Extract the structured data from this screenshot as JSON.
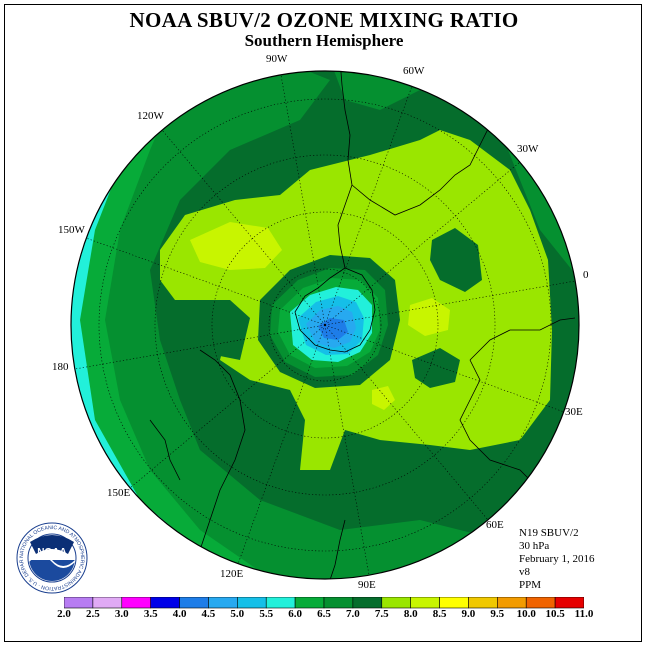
{
  "title": "NOAA SBUV/2 OZONE MIXING RATIO",
  "subtitle": "Southern Hemisphere",
  "info": {
    "instrument": "N19 SBUV/2",
    "level": "30 hPa",
    "date": "February 1, 2016",
    "version": "v8",
    "units": "PPM"
  },
  "longitude_labels": [
    "90W",
    "60W",
    "30W",
    "0",
    "30E",
    "60E",
    "90E",
    "120E",
    "150E",
    "180",
    "150W",
    "120W"
  ],
  "colorbar": {
    "ticks": [
      "2.0",
      "2.5",
      "3.0",
      "3.5",
      "4.0",
      "4.5",
      "5.0",
      "5.5",
      "6.0",
      "6.5",
      "7.0",
      "7.5",
      "8.0",
      "8.5",
      "9.0",
      "9.5",
      "10.0",
      "10.5",
      "11.0"
    ],
    "colors": [
      "#b77cf2",
      "#e0aaf5",
      "#ff00ff",
      "#0000e8",
      "#1e7de8",
      "#27a9f0",
      "#15bfe8",
      "#22f0da",
      "#07ab39",
      "#059030",
      "#056d2c",
      "#9ae600",
      "#c8f500",
      "#ffff00",
      "#f0c800",
      "#f29b00",
      "#f06300",
      "#e60000",
      "#7a4a2e"
    ]
  },
  "logo": {
    "text": "NOAA",
    "ring_text": "NATIONAL OCEANIC AND ATMOSPHERIC ADMINISTRATION · U.S. DEPARTMENT OF COMMERCE"
  }
}
